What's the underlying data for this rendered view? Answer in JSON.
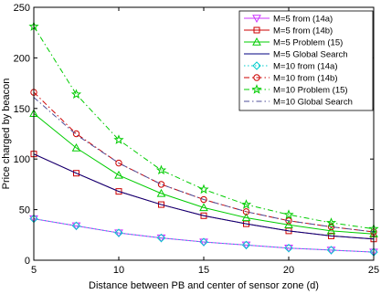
{
  "chart_data": {
    "type": "line",
    "title": "",
    "xlabel": "Distance between PB and center of sensor zone (d)",
    "ylabel": "Price charged by beacon",
    "xlim": [
      5,
      25
    ],
    "ylim": [
      0,
      250
    ],
    "xticks": [
      5,
      10,
      15,
      20,
      25
    ],
    "yticks": [
      0,
      50,
      100,
      150,
      200,
      250
    ],
    "grid": false,
    "legend_position": "top-right",
    "x": [
      5,
      7.5,
      10,
      12.5,
      15,
      17.5,
      20,
      22.5,
      25
    ],
    "series": [
      {
        "name": "M=5 from (14a)",
        "color": "#cc33ff",
        "line_style": "solid",
        "marker": "triangle-down",
        "values": [
          41,
          34,
          27,
          22,
          18,
          15,
          12,
          10,
          8
        ]
      },
      {
        "name": "M=5 from (14b)",
        "color": "#cc0000",
        "line_style": "solid",
        "marker": "square",
        "values": [
          105,
          86,
          68,
          55,
          44,
          36,
          29,
          24,
          21
        ]
      },
      {
        "name": "M=5 Problem (15)",
        "color": "#00cc00",
        "line_style": "solid",
        "marker": "triangle-up",
        "values": [
          145,
          111,
          84,
          66,
          52,
          42,
          35,
          29,
          26
        ]
      },
      {
        "name": "M=5 Global Search",
        "color": "#000080",
        "line_style": "solid",
        "marker": "none",
        "values": [
          105,
          86,
          68,
          55,
          44,
          36,
          29,
          24,
          21
        ]
      },
      {
        "name": "M=10 from (14a)",
        "color": "#00cccc",
        "line_style": "dotted",
        "marker": "diamond",
        "values": [
          41,
          34,
          27,
          22,
          18,
          15,
          12,
          10,
          8
        ]
      },
      {
        "name": "M=10 from (14b)",
        "color": "#cc0000",
        "line_style": "dashdot",
        "marker": "circle",
        "values": [
          166,
          125,
          96,
          75,
          60,
          48,
          39,
          33,
          28
        ]
      },
      {
        "name": "M=10 Problem (15)",
        "color": "#00cc00",
        "line_style": "dashdot",
        "marker": "star",
        "values": [
          231,
          164,
          119,
          89,
          70,
          55,
          45,
          37,
          31
        ]
      },
      {
        "name": "M=10 Global Search",
        "color": "#4d4d99",
        "line_style": "dashdot",
        "marker": "none",
        "values": [
          161,
          124,
          96,
          75,
          60,
          48,
          39,
          33,
          28
        ]
      }
    ]
  }
}
